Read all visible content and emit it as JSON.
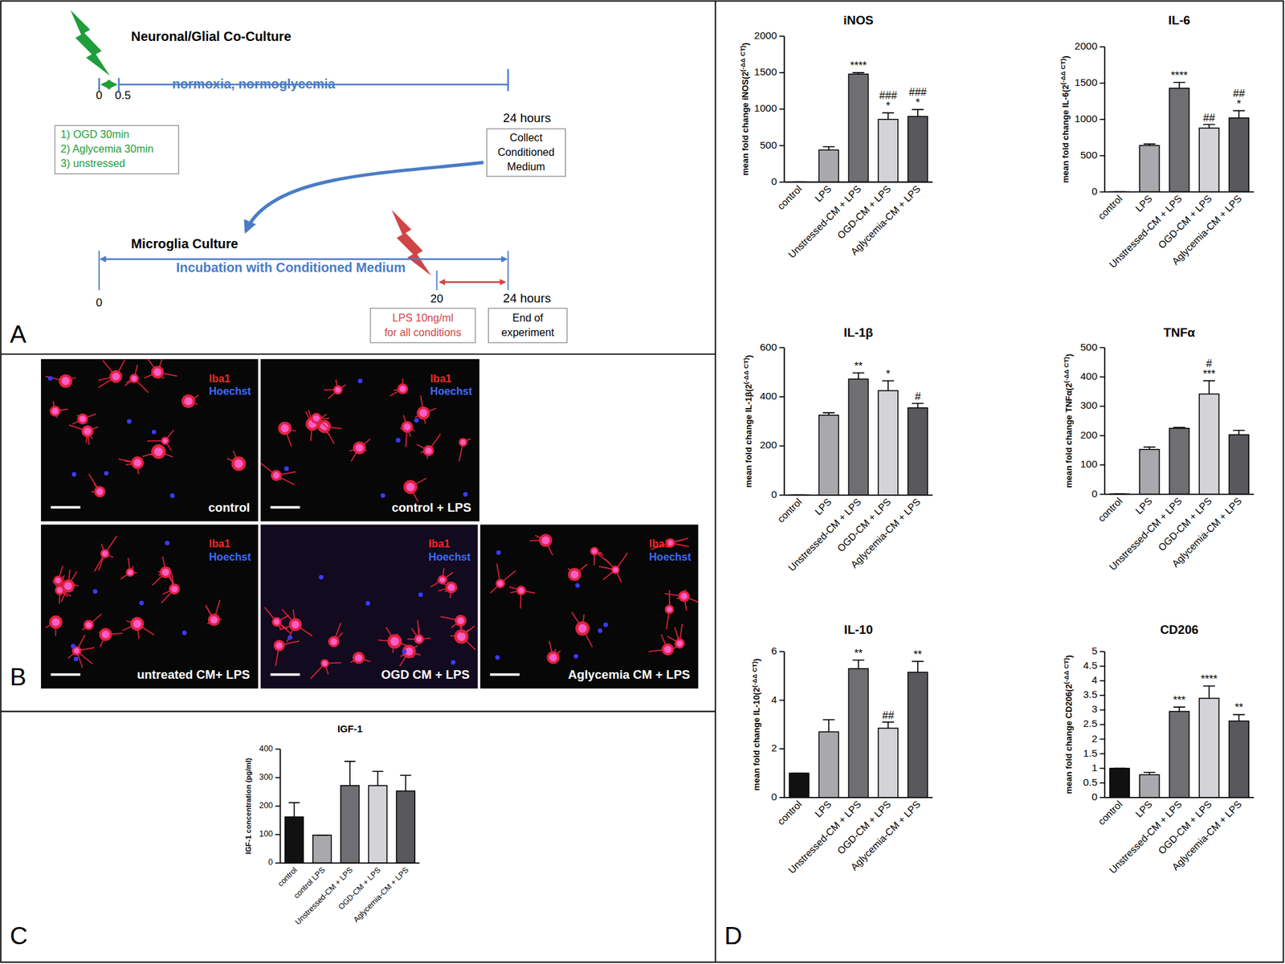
{
  "panel_labels": [
    "A",
    "B",
    "C",
    "D"
  ],
  "diagram": {
    "coculture_title": "Neuronal/Glial Co-Culture",
    "coculture_period": "normoxia, normoglycemia",
    "coculture_times": [
      "0",
      "0.5",
      "24 hours"
    ],
    "stress_conditions": [
      "1) OGD 30min",
      "2) Aglycemia 30min",
      "3) unstressed"
    ],
    "collect_box": [
      "Collect",
      "Conditioned",
      "Medium"
    ],
    "microglia_title": "Microglia Culture",
    "microglia_period": "Incubation with Conditioned Medium",
    "microglia_times": [
      "0",
      "20",
      "24 hours"
    ],
    "lps_box": [
      "LPS 10ng/ml",
      "for all conditions"
    ],
    "end_box": [
      "End of",
      "experiment"
    ]
  },
  "images": {
    "stain_labels": [
      "Iba1",
      "Hoechst"
    ],
    "captions": [
      "control",
      "control + LPS",
      "untreated CM+ LPS",
      "OGD CM + LPS",
      "Aglycemia CM + LPS"
    ]
  },
  "chart_data": [
    {
      "type": "bar",
      "title": "iNOS",
      "y_label": "mean fold change iNOS(2",
      "y_label_exponent": "(-ΔΔ CT)",
      "y_label_suffix": ")",
      "categories": [
        "control",
        "LPS",
        "Unstressed-CM + LPS",
        "OGD-CM + LPS",
        "Aglycemia-CM + LPS"
      ],
      "values": [
        1,
        440,
        1480,
        860,
        900
      ],
      "error": [
        0,
        45,
        20,
        90,
        95
      ],
      "colors": [
        "#111111",
        "#a9a9ad",
        "#6f6f73",
        "#d4d4d8",
        "#59595d"
      ],
      "annotations": [
        null,
        null,
        [
          "****"
        ],
        [
          "###",
          "*"
        ],
        [
          "###",
          "*"
        ]
      ],
      "ylim": [
        0,
        2000
      ],
      "yticks": [
        0,
        500,
        1000,
        1500,
        2000
      ]
    },
    {
      "type": "bar",
      "title": "IL-6",
      "y_label": "mean fold change IL-6(2",
      "y_label_exponent": "(-ΔΔ CT)",
      "y_label_suffix": ")",
      "categories": [
        "control",
        "LPS",
        "Unstressed-CM + LPS",
        "OGD-CM + LPS",
        "Aglycemia-CM + LPS"
      ],
      "values": [
        1,
        640,
        1430,
        880,
        1020
      ],
      "error": [
        0,
        20,
        80,
        50,
        100
      ],
      "colors": [
        "#111111",
        "#a9a9ad",
        "#6f6f73",
        "#d4d4d8",
        "#59595d"
      ],
      "annotations": [
        null,
        null,
        [
          "****"
        ],
        [
          "##"
        ],
        [
          "##",
          "*"
        ]
      ],
      "ylim": [
        0,
        2000
      ],
      "yticks": [
        0,
        500,
        1000,
        1500,
        2000
      ]
    },
    {
      "type": "bar",
      "title": "IL-1β",
      "y_label": "mean fold change IL-1β(2",
      "y_label_exponent": "(-ΔΔ CT)",
      "y_label_suffix": ")",
      "categories": [
        "control",
        "LPS",
        "Unstressed-CM + LPS",
        "OGD-CM + LPS",
        "Aglycemia-CM + LPS"
      ],
      "values": [
        1,
        325,
        472,
        425,
        355
      ],
      "error": [
        0,
        10,
        25,
        40,
        18
      ],
      "colors": [
        "#111111",
        "#a9a9ad",
        "#6f6f73",
        "#d4d4d8",
        "#59595d"
      ],
      "annotations": [
        null,
        null,
        [
          "**"
        ],
        [
          "*"
        ],
        [
          "#"
        ]
      ],
      "ylim": [
        0,
        600
      ],
      "yticks": [
        0,
        200,
        400,
        600
      ]
    },
    {
      "type": "bar",
      "title": "TNFα",
      "y_label": "mean fold change TNFα(2",
      "y_label_exponent": "(-ΔΔ CT)",
      "y_label_suffix": ")",
      "categories": [
        "control",
        "LPS",
        "Unstressed-CM + LPS",
        "OGD-CM + LPS",
        "Aglycemia-CM + LPS"
      ],
      "values": [
        1,
        153,
        225,
        342,
        203
      ],
      "error": [
        0,
        8,
        3,
        45,
        15
      ],
      "colors": [
        "#111111",
        "#a9a9ad",
        "#6f6f73",
        "#d4d4d8",
        "#59595d"
      ],
      "annotations": [
        null,
        null,
        null,
        [
          "#",
          "***"
        ],
        null
      ],
      "ylim": [
        0,
        500
      ],
      "yticks": [
        0,
        100,
        200,
        300,
        400,
        500
      ]
    },
    {
      "type": "bar",
      "title": "IL-10",
      "y_label": "mean fold change IL-10(2",
      "y_label_exponent": "(-ΔΔ CT)",
      "y_label_suffix": ")",
      "categories": [
        "control",
        "LPS",
        "Unstressed-CM + LPS",
        "OGD-CM + LPS",
        "Aglycemia-CM + LPS"
      ],
      "values": [
        1,
        2.7,
        5.3,
        2.85,
        5.15
      ],
      "error": [
        0,
        0.5,
        0.35,
        0.25,
        0.45
      ],
      "colors": [
        "#111111",
        "#a9a9ad",
        "#6f6f73",
        "#d4d4d8",
        "#59595d"
      ],
      "annotations": [
        null,
        null,
        [
          "**"
        ],
        [
          "##"
        ],
        [
          "**"
        ]
      ],
      "ylim": [
        0,
        6
      ],
      "yticks": [
        0,
        2,
        4,
        6
      ]
    },
    {
      "type": "bar",
      "title": "CD206",
      "y_label": "mean fold change CD206(2",
      "y_label_exponent": "(-ΔΔ CT)",
      "y_label_suffix": ")",
      "categories": [
        "control",
        "LPS",
        "Unstressed-CM + LPS",
        "OGD-CM + LPS",
        "Aglycemia-CM + LPS"
      ],
      "values": [
        1,
        0.78,
        2.95,
        3.4,
        2.62
      ],
      "error": [
        0,
        0.08,
        0.15,
        0.42,
        0.22
      ],
      "colors": [
        "#111111",
        "#a9a9ad",
        "#6f6f73",
        "#d4d4d8",
        "#59595d"
      ],
      "annotations": [
        null,
        null,
        [
          "***"
        ],
        [
          "****"
        ],
        [
          "**"
        ]
      ],
      "ylim": [
        0,
        5
      ],
      "yticks": [
        0,
        0.5,
        1,
        1.5,
        2,
        2.5,
        3,
        3.5,
        4,
        4.5,
        5
      ]
    },
    {
      "type": "bar",
      "title": "IGF-1",
      "y_label": "IGF-1 concentration (pg/ml)",
      "categories": [
        "control",
        "control LPS",
        "Unstressed-CM + LPS",
        "OGD-CM + LPS",
        "Aglycemia-CM + LPS"
      ],
      "values": [
        162,
        98,
        272,
        272,
        253
      ],
      "error": [
        50,
        0,
        85,
        50,
        55
      ],
      "colors": [
        "#111111",
        "#a9a9ad",
        "#6f6f73",
        "#d4d4d8",
        "#59595d"
      ],
      "ylim": [
        0,
        400
      ],
      "yticks": [
        0,
        100,
        200,
        300,
        400
      ]
    }
  ]
}
